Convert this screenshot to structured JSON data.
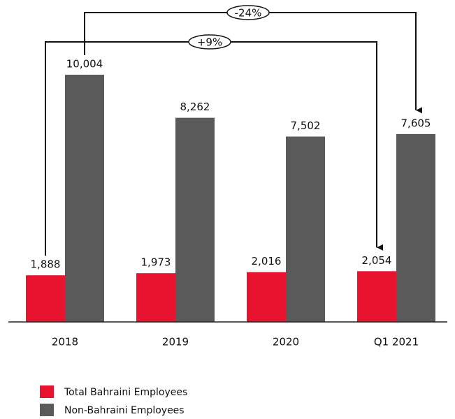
{
  "chart_data": {
    "type": "bar",
    "categories": [
      "2018",
      "2019",
      "2020",
      "Q1 2021"
    ],
    "series": [
      {
        "name": "Total Bahraini Employees",
        "color": "#e8132f",
        "values": [
          1888,
          1973,
          2016,
          2054
        ],
        "value_labels": [
          "1,888",
          "1,973",
          "2,016",
          "2,054"
        ]
      },
      {
        "name": "Non-Bahraini Employees",
        "color": "#5a5a5a",
        "values": [
          10004,
          8262,
          7502,
          7605
        ],
        "value_labels": [
          "10,004",
          "8,262",
          "7,502",
          "7,605"
        ]
      }
    ],
    "annotations": [
      "+9%",
      "-24%"
    ],
    "legend": "bottom-left"
  }
}
